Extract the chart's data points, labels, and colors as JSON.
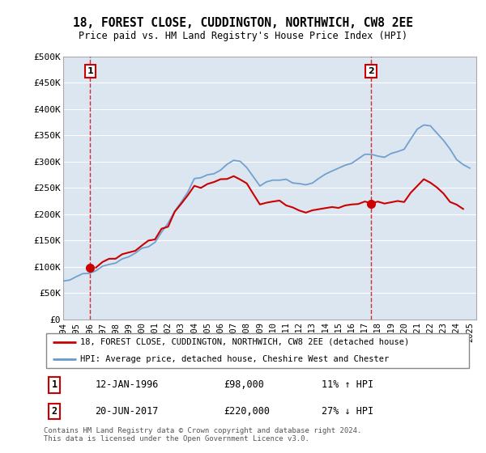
{
  "title": "18, FOREST CLOSE, CUDDINGTON, NORTHWICH, CW8 2EE",
  "subtitle": "Price paid vs. HM Land Registry's House Price Index (HPI)",
  "background_color": "#ffffff",
  "plot_bg_color": "#dce6f1",
  "line1_color": "#cc0000",
  "line2_color": "#6699cc",
  "dashed_line_color": "#cc0000",
  "sale1_date": "12-JAN-1996",
  "sale1_price": 98000,
  "sale1_hpi": "11% ↑ HPI",
  "sale2_date": "20-JUN-2017",
  "sale2_price": 220000,
  "sale2_hpi": "27% ↓ HPI",
  "legend_label1": "18, FOREST CLOSE, CUDDINGTON, NORTHWICH, CW8 2EE (detached house)",
  "legend_label2": "HPI: Average price, detached house, Cheshire West and Chester",
  "footer": "Contains HM Land Registry data © Crown copyright and database right 2024.\nThis data is licensed under the Open Government Licence v3.0.",
  "ylim": [
    0,
    500000
  ],
  "yticks": [
    0,
    50000,
    100000,
    150000,
    200000,
    250000,
    300000,
    350000,
    400000,
    450000,
    500000
  ],
  "ytick_labels": [
    "£0",
    "£50K",
    "£100K",
    "£150K",
    "£200K",
    "£250K",
    "£300K",
    "£350K",
    "£400K",
    "£450K",
    "£500K"
  ],
  "hpi_years": [
    1994.0,
    1994.5,
    1995.0,
    1995.5,
    1996.0,
    1996.5,
    1997.0,
    1997.5,
    1998.0,
    1998.5,
    1999.0,
    1999.5,
    2000.0,
    2000.5,
    2001.0,
    2001.5,
    2002.0,
    2002.5,
    2003.0,
    2003.5,
    2004.0,
    2004.5,
    2005.0,
    2005.5,
    2006.0,
    2006.5,
    2007.0,
    2007.5,
    2008.0,
    2008.5,
    2009.0,
    2009.5,
    2010.0,
    2010.5,
    2011.0,
    2011.5,
    2012.0,
    2012.5,
    2013.0,
    2013.5,
    2014.0,
    2014.5,
    2015.0,
    2015.5,
    2016.0,
    2016.5,
    2017.0,
    2017.5,
    2018.0,
    2018.5,
    2019.0,
    2019.5,
    2020.0,
    2020.5,
    2021.0,
    2021.5,
    2022.0,
    2022.5,
    2023.0,
    2023.5,
    2024.0,
    2024.5,
    2025.0
  ],
  "hpi_values": [
    72000,
    75000,
    80000,
    84000,
    88000,
    93000,
    98000,
    103000,
    108000,
    114000,
    120000,
    127000,
    135000,
    142000,
    150000,
    167000,
    185000,
    205000,
    225000,
    245000,
    265000,
    270000,
    275000,
    280000,
    285000,
    295000,
    305000,
    300000,
    290000,
    272000,
    255000,
    258000,
    265000,
    267000,
    265000,
    262000,
    258000,
    260000,
    262000,
    268000,
    275000,
    282000,
    288000,
    294000,
    300000,
    307000,
    315000,
    312000,
    310000,
    312000,
    315000,
    320000,
    325000,
    342000,
    360000,
    368000,
    370000,
    355000,
    340000,
    322000,
    305000,
    295000,
    290000
  ],
  "sale1_x": 1996.05,
  "sale2_x": 2017.47,
  "xmin": 1994,
  "xmax": 2025.5
}
